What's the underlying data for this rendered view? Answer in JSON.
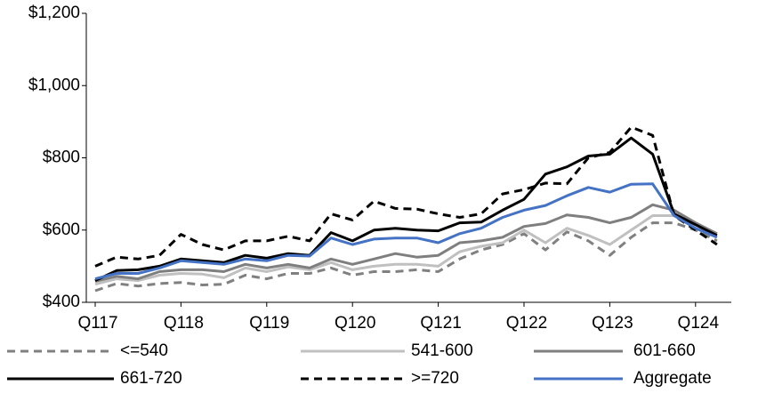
{
  "chart_data": {
    "type": "line",
    "categories": [
      "Q117",
      null,
      null,
      null,
      "Q118",
      null,
      null,
      null,
      "Q119",
      null,
      null,
      null,
      "Q120",
      null,
      null,
      null,
      "Q121",
      null,
      null,
      null,
      "Q122",
      null,
      null,
      null,
      "Q123",
      null,
      null,
      null,
      "Q124",
      null
    ],
    "ylim": [
      400,
      1200
    ],
    "yticks": [
      {
        "value": 400,
        "label": "$400"
      },
      {
        "value": 600,
        "label": "$600"
      },
      {
        "value": 800,
        "label": "$800"
      },
      {
        "value": 1000,
        "label": "$1,000"
      },
      {
        "value": 1200,
        "label": "$1,200"
      }
    ],
    "grid": false,
    "series": [
      {
        "name": "<=540",
        "color": "#808080",
        "dashed": true,
        "values": [
          432,
          452,
          445,
          452,
          455,
          448,
          450,
          475,
          465,
          480,
          480,
          495,
          475,
          485,
          485,
          490,
          485,
          520,
          545,
          560,
          590,
          545,
          595,
          570,
          530,
          580,
          620,
          620,
          600,
          570
        ]
      },
      {
        "name": "541-600",
        "color": "#c0c0c0",
        "dashed": false,
        "values": [
          450,
          465,
          460,
          475,
          480,
          478,
          468,
          495,
          485,
          498,
          490,
          510,
          490,
          500,
          505,
          505,
          500,
          540,
          555,
          565,
          600,
          565,
          605,
          585,
          560,
          600,
          640,
          640,
          615,
          580
        ]
      },
      {
        "name": "601-660",
        "color": "#7f7f7f",
        "dashed": false,
        "values": [
          458,
          472,
          465,
          485,
          490,
          490,
          485,
          505,
          495,
          505,
          495,
          520,
          505,
          520,
          535,
          525,
          530,
          565,
          570,
          580,
          610,
          618,
          642,
          635,
          620,
          635,
          670,
          655,
          620,
          590
        ]
      },
      {
        "name": "661-720",
        "color": "#000000",
        "dashed": false,
        "values": [
          460,
          488,
          490,
          500,
          520,
          515,
          510,
          530,
          522,
          535,
          530,
          593,
          570,
          600,
          605,
          600,
          598,
          620,
          622,
          655,
          685,
          755,
          775,
          805,
          810,
          855,
          810,
          645,
          615,
          585
        ]
      },
      {
        "name": ">=720",
        "color": "#000000",
        "dashed": true,
        "values": [
          500,
          525,
          520,
          530,
          588,
          560,
          545,
          570,
          570,
          583,
          570,
          645,
          628,
          680,
          660,
          658,
          645,
          635,
          645,
          700,
          712,
          730,
          728,
          800,
          815,
          885,
          862,
          640,
          600,
          560
        ]
      },
      {
        "name": "Aggregate",
        "color": "#4472c4",
        "dashed": false,
        "values": [
          465,
          480,
          480,
          495,
          515,
          510,
          505,
          520,
          515,
          530,
          528,
          578,
          560,
          575,
          578,
          578,
          565,
          590,
          605,
          635,
          655,
          668,
          695,
          718,
          705,
          727,
          728,
          640,
          605,
          580
        ]
      }
    ]
  }
}
